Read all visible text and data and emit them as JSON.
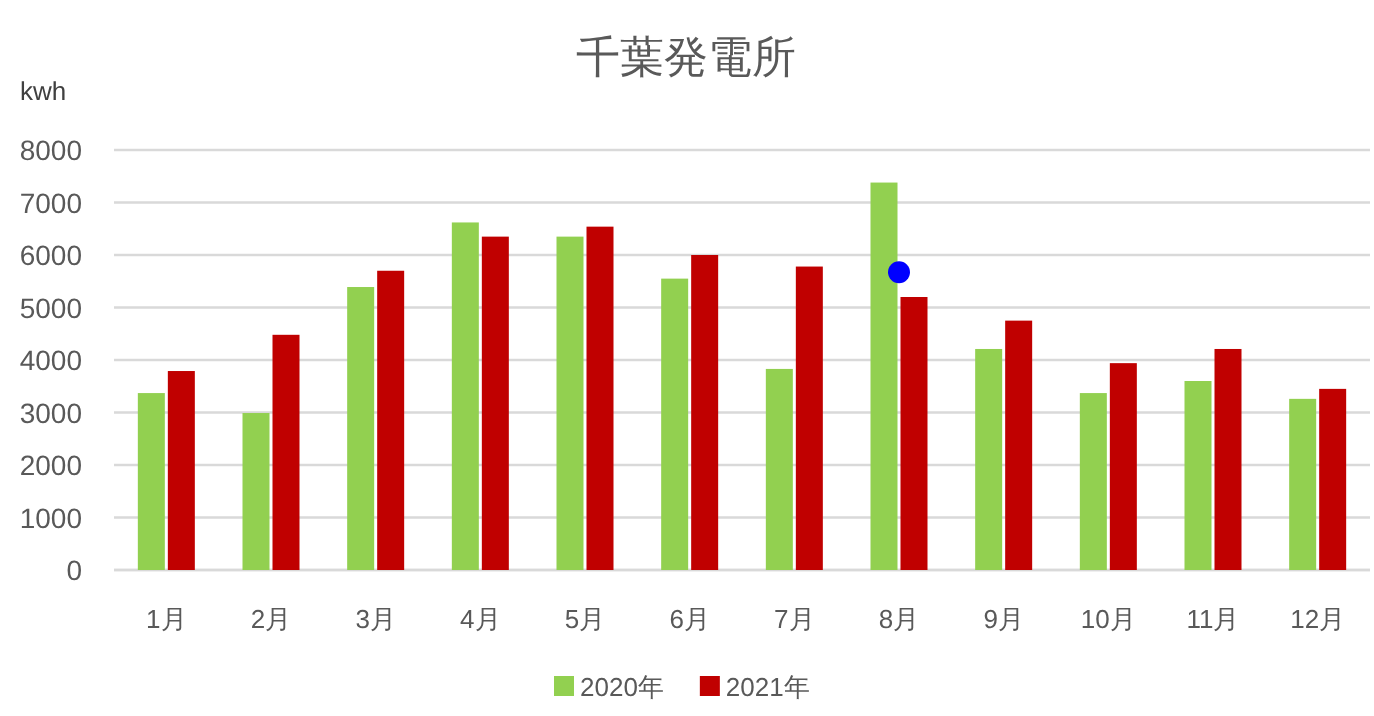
{
  "chart_data": {
    "type": "bar",
    "title": "千葉発電所",
    "ylabel": "kwh",
    "categories": [
      "1月",
      "2月",
      "3月",
      "4月",
      "5月",
      "6月",
      "7月",
      "8月",
      "9月",
      "10月",
      "11月",
      "12月"
    ],
    "series": [
      {
        "name": "2020年",
        "color": "#92d050",
        "values": [
          3370,
          2990,
          5390,
          6620,
          6350,
          5550,
          3830,
          7380,
          4210,
          3370,
          3600,
          3260
        ]
      },
      {
        "name": "2021年",
        "color": "#c00000",
        "values": [
          3790,
          4480,
          5700,
          6350,
          6540,
          6000,
          5780,
          5200,
          4750,
          3940,
          4210,
          3450
        ]
      },
      {
        "type": "scatter",
        "color": "#0000ff",
        "x": [
          "8月"
        ],
        "values": [
          5670
        ]
      }
    ],
    "ylim": [
      0,
      8000
    ],
    "yticks": [
      0,
      1000,
      2000,
      3000,
      4000,
      5000,
      6000,
      7000,
      8000
    ],
    "grid": "y",
    "legend": "bottom"
  }
}
